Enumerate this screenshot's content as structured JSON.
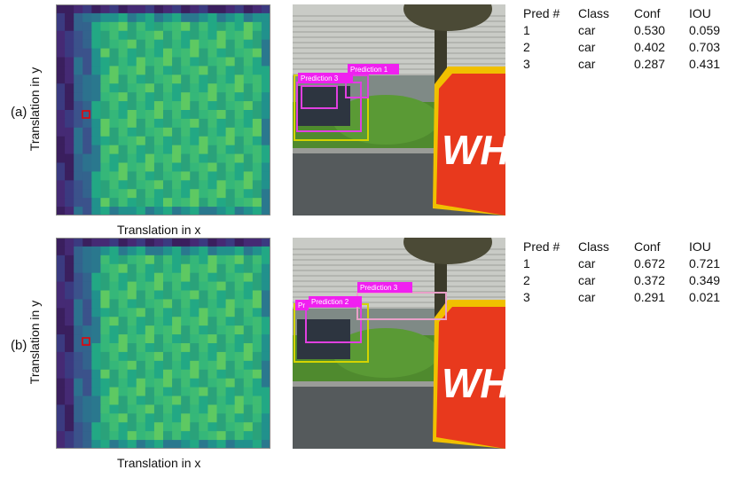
{
  "figure": {
    "rows": [
      {
        "label": "(a)",
        "x_axis": "Translation in x",
        "y_axis": "Translation in y",
        "sign_text": "WH",
        "overlay_labels": [
          "Prediction 1",
          "Prediction 3"
        ],
        "table": {
          "header": [
            "Pred #",
            "Class",
            "Conf",
            "IOU"
          ],
          "rows": [
            [
              "1",
              "car",
              "0.530",
              "0.059"
            ],
            [
              "2",
              "car",
              "0.402",
              "0.703"
            ],
            [
              "3",
              "car",
              "0.287",
              "0.431"
            ]
          ]
        }
      },
      {
        "label": "(b)",
        "x_axis": "Translation in x",
        "y_axis": "Translation in y",
        "sign_text": "WH",
        "overlay_labels": [
          "Pr",
          "Prediction 2",
          "Prediction 3"
        ],
        "table": {
          "header": [
            "Pred #",
            "Class",
            "Conf",
            "IOU"
          ],
          "rows": [
            [
              "1",
              "car",
              "0.672",
              "0.721"
            ],
            [
              "2",
              "car",
              "0.372",
              "0.349"
            ],
            [
              "3",
              "car",
              "0.291",
              "0.021"
            ]
          ]
        }
      }
    ]
  }
}
